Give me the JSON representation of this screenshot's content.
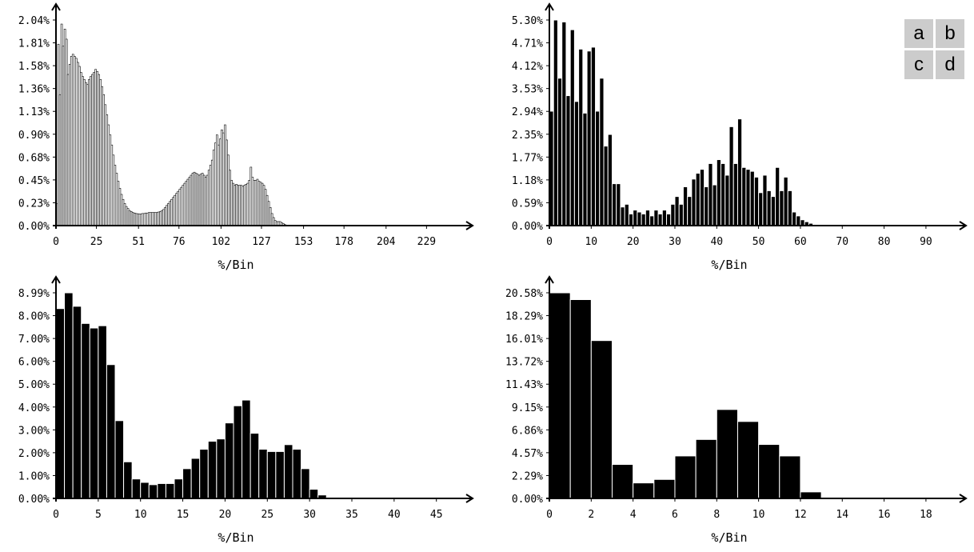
{
  "panel_legend": [
    "a",
    "b",
    "c",
    "d"
  ],
  "chart_data": [
    {
      "id": "a",
      "type": "bar",
      "xlabel": "%/Bin",
      "ylabel": "",
      "ytick_labels": [
        "0.00%",
        "0.23%",
        "0.45%",
        "0.68%",
        "0.90%",
        "1.13%",
        "1.36%",
        "1.58%",
        "1.81%",
        "2.04%"
      ],
      "ylim": [
        0,
        2.04
      ],
      "xtick_labels": [
        "0",
        "25",
        "51",
        "76",
        "102",
        "127",
        "153",
        "178",
        "204",
        "229"
      ],
      "xtick_values": [
        0,
        25,
        51,
        76,
        102,
        127,
        153,
        178,
        204,
        229
      ],
      "xlim": [
        0,
        256
      ],
      "bar_width": 1,
      "x_start": 0,
      "values": [
        0.22,
        1.8,
        1.3,
        2.0,
        1.78,
        1.95,
        1.85,
        1.5,
        1.6,
        1.68,
        1.7,
        1.68,
        1.66,
        1.62,
        1.58,
        1.52,
        1.48,
        1.45,
        1.42,
        1.4,
        1.45,
        1.48,
        1.5,
        1.52,
        1.55,
        1.53,
        1.5,
        1.45,
        1.38,
        1.3,
        1.2,
        1.1,
        1.0,
        0.9,
        0.8,
        0.7,
        0.6,
        0.52,
        0.44,
        0.37,
        0.31,
        0.26,
        0.22,
        0.19,
        0.17,
        0.15,
        0.14,
        0.13,
        0.125,
        0.12,
        0.118,
        0.115,
        0.115,
        0.12,
        0.12,
        0.125,
        0.125,
        0.13,
        0.13,
        0.13,
        0.13,
        0.13,
        0.13,
        0.135,
        0.14,
        0.15,
        0.16,
        0.18,
        0.2,
        0.22,
        0.24,
        0.26,
        0.28,
        0.3,
        0.32,
        0.34,
        0.36,
        0.38,
        0.4,
        0.42,
        0.44,
        0.46,
        0.48,
        0.5,
        0.52,
        0.53,
        0.52,
        0.51,
        0.5,
        0.51,
        0.52,
        0.5,
        0.48,
        0.5,
        0.55,
        0.6,
        0.65,
        0.75,
        0.82,
        0.9,
        0.8,
        0.86,
        0.95,
        0.92,
        1.0,
        0.85,
        0.7,
        0.55,
        0.45,
        0.42,
        0.4,
        0.41,
        0.4,
        0.4,
        0.4,
        0.39,
        0.4,
        0.41,
        0.42,
        0.45,
        0.58,
        0.48,
        0.45,
        0.45,
        0.46,
        0.44,
        0.43,
        0.42,
        0.4,
        0.36,
        0.3,
        0.24,
        0.18,
        0.12,
        0.08,
        0.05,
        0.04,
        0.04,
        0.04,
        0.03,
        0.02,
        0.01,
        0.005,
        0.004,
        0.003,
        0.003,
        0.002,
        0.002,
        0.002,
        0.002,
        0.002,
        0.002,
        0.002,
        0.002,
        0.002,
        0.002,
        0.002,
        0.002,
        0.002,
        0.002,
        0.002,
        0.002,
        0.002,
        0.002,
        0.002,
        0.002,
        0.002,
        0.002,
        0.002,
        0.002,
        0.002,
        0.002,
        0.002,
        0.002,
        0.002,
        0.002,
        0.002,
        0.002,
        0.002,
        0.002,
        0.002,
        0.002,
        0.002,
        0.002,
        0.002,
        0.002,
        0.002,
        0.002,
        0.002,
        0.002,
        0.002,
        0.002,
        0.002,
        0.002,
        0.002,
        0.002,
        0.002,
        0.002,
        0.002,
        0.002,
        0.002,
        0.002,
        0.002,
        0.002,
        0.002,
        0.002,
        0.002,
        0.002,
        0.002,
        0.002,
        0.002,
        0.002,
        0.002,
        0.002,
        0.002,
        0.002,
        0.002,
        0.002,
        0.002,
        0.002,
        0.002,
        0.002,
        0.002,
        0.002,
        0.002,
        0.002,
        0.002,
        0.002,
        0.002,
        0.002,
        0.002,
        0.002,
        0.002,
        0.002,
        0.002,
        0.002,
        0.002,
        0.002,
        0.002,
        0.002,
        0.002,
        0.002,
        0.002,
        0.002,
        0.002,
        0.002,
        0.002,
        0.002,
        0.002
      ],
      "colors": {
        "bar": "#ffffff",
        "bar_outline": "#000000"
      }
    },
    {
      "id": "b",
      "type": "bar",
      "xlabel": "%/Bin",
      "ylabel": "",
      "ytick_labels": [
        "0.00%",
        "0.59%",
        "1.18%",
        "1.77%",
        "2.35%",
        "2.94%",
        "3.53%",
        "4.12%",
        "4.71%",
        "5.30%"
      ],
      "ylim": [
        0,
        5.3
      ],
      "xtick_labels": [
        "0",
        "10",
        "20",
        "30",
        "40",
        "50",
        "60",
        "70",
        "80",
        "90"
      ],
      "xtick_values": [
        0,
        10,
        20,
        30,
        40,
        50,
        60,
        70,
        80,
        90
      ],
      "xlim": [
        0,
        99
      ],
      "bar_width": 1,
      "x_start": 0,
      "values": [
        2.95,
        5.3,
        3.8,
        5.25,
        3.35,
        5.05,
        3.2,
        4.55,
        2.9,
        4.5,
        4.6,
        2.95,
        3.8,
        2.05,
        2.35,
        1.08,
        1.08,
        0.48,
        0.55,
        0.3,
        0.4,
        0.35,
        0.3,
        0.4,
        0.25,
        0.4,
        0.3,
        0.4,
        0.3,
        0.55,
        0.75,
        0.55,
        1.0,
        0.75,
        1.2,
        1.35,
        1.45,
        1.0,
        1.6,
        1.05,
        1.7,
        1.6,
        1.3,
        2.55,
        1.6,
        2.75,
        1.5,
        1.45,
        1.4,
        1.25,
        0.85,
        1.3,
        0.9,
        0.75,
        1.5,
        0.9,
        1.25,
        0.9,
        0.35,
        0.25,
        0.15,
        0.1,
        0.06,
        0.03,
        0.02,
        0.02,
        0.02,
        0.02,
        0.02,
        0.02,
        0.02,
        0.02,
        0.02,
        0.02,
        0.02,
        0.02,
        0.02,
        0.02,
        0.02,
        0.02,
        0.02,
        0.02,
        0.02,
        0.02,
        0.02,
        0.02,
        0.02,
        0.02,
        0.02,
        0.02,
        0.02,
        0.02,
        0.02,
        0.02,
        0.02,
        0.02,
        0.02,
        0.02,
        0.02
      ],
      "colors": {
        "bar": "#000000",
        "bar_outline": "#ffffff"
      }
    },
    {
      "id": "c",
      "type": "bar",
      "xlabel": "%/Bin",
      "ylabel": "",
      "ytick_labels": [
        "0.00%",
        "1.00%",
        "2.00%",
        "3.00%",
        "4.00%",
        "5.00%",
        "6.00%",
        "7.00%",
        "8.00%",
        "8.99%"
      ],
      "ylim": [
        0,
        8.99
      ],
      "xtick_labels": [
        "0",
        "5",
        "10",
        "15",
        "20",
        "25",
        "30",
        "35",
        "40",
        "45"
      ],
      "xtick_values": [
        0,
        5,
        10,
        15,
        20,
        25,
        30,
        35,
        40,
        45
      ],
      "xlim": [
        0,
        49
      ],
      "bar_width": 1,
      "x_start": 0,
      "values": [
        8.3,
        8.99,
        8.4,
        7.65,
        7.45,
        7.55,
        5.85,
        3.4,
        1.6,
        0.85,
        0.7,
        0.6,
        0.65,
        0.65,
        0.85,
        1.3,
        1.75,
        2.15,
        2.5,
        2.6,
        3.3,
        4.05,
        4.3,
        2.85,
        2.15,
        2.05,
        2.05,
        2.35,
        2.15,
        1.3,
        0.4,
        0.15,
        0.05,
        0.03,
        0.03,
        0.03,
        0.03,
        0.03,
        0.03,
        0.03,
        0.03,
        0.03,
        0.03,
        0.03,
        0.03,
        0.03,
        0.03,
        0.03,
        0.03
      ],
      "colors": {
        "bar": "#000000",
        "bar_outline": "#ffffff"
      }
    },
    {
      "id": "d",
      "type": "bar",
      "xlabel": "%/Bin",
      "ylabel": "",
      "ytick_labels": [
        "0.00%",
        "2.29%",
        "4.57%",
        "6.86%",
        "9.15%",
        "11.43%",
        "13.72%",
        "16.01%",
        "18.29%",
        "20.58%"
      ],
      "ylim": [
        0,
        20.58
      ],
      "xtick_labels": [
        "0",
        "2",
        "4",
        "6",
        "8",
        "10",
        "12",
        "14",
        "16",
        "18"
      ],
      "xtick_values": [
        0,
        2,
        4,
        6,
        8,
        10,
        12,
        14,
        16,
        18
      ],
      "xlim": [
        0,
        19.8
      ],
      "bar_width": 1,
      "x_start": 0,
      "values": [
        20.58,
        19.9,
        15.8,
        3.4,
        1.55,
        1.9,
        4.25,
        5.9,
        8.9,
        7.7,
        5.4,
        4.25,
        0.65,
        0.05,
        0.05,
        0.05,
        0.05,
        0.05,
        0.05,
        0.05
      ],
      "colors": {
        "bar": "#000000",
        "bar_outline": "#ffffff"
      }
    }
  ]
}
